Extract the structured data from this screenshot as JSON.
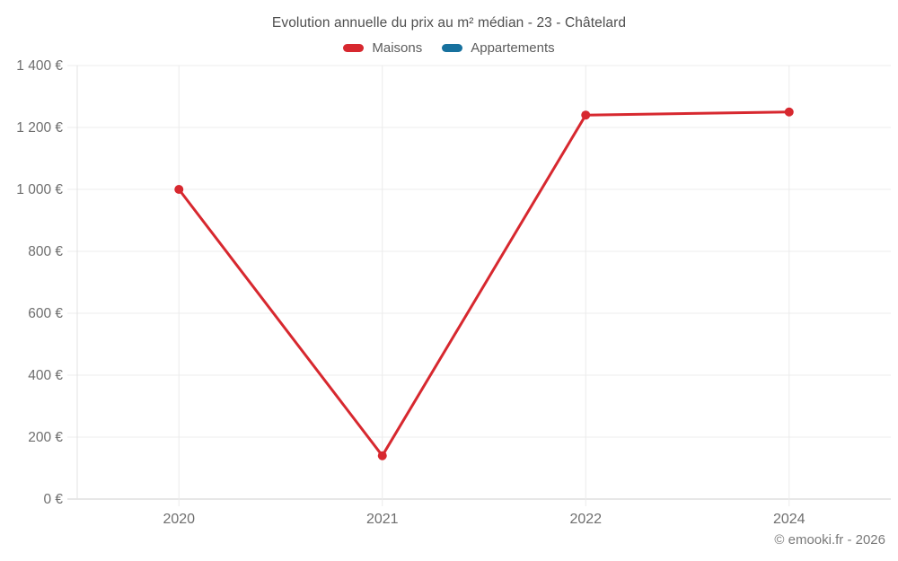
{
  "chart_data": {
    "type": "line",
    "title": "Evolution annuelle du prix au m² médian - 23 - Châtelard",
    "categories": [
      "2020",
      "2021",
      "2022",
      "2024"
    ],
    "series": [
      {
        "name": "Maisons",
        "color": "#d7282f",
        "values": [
          1000,
          140,
          1240,
          1250
        ]
      },
      {
        "name": "Appartements",
        "color": "#17719e",
        "values": []
      }
    ],
    "xlabel": "",
    "ylabel": "",
    "ylim": [
      0,
      1400
    ],
    "ytick_step": 200,
    "ytick_labels": [
      "0 €",
      "200 €",
      "400 €",
      "600 €",
      "800 €",
      "1 000 €",
      "1 200 €",
      "1 400 €"
    ],
    "grid": true,
    "legend_position": "top"
  },
  "footer": {
    "credit": "© emooki.fr - 2026"
  },
  "style": {
    "grid_color": "#ececec",
    "axis_line_color": "#e3e3e3",
    "baseline_color": "#cfcfcf",
    "tick_text_color": "#6e6e6e",
    "point_radius": 5,
    "line_width": 3
  }
}
